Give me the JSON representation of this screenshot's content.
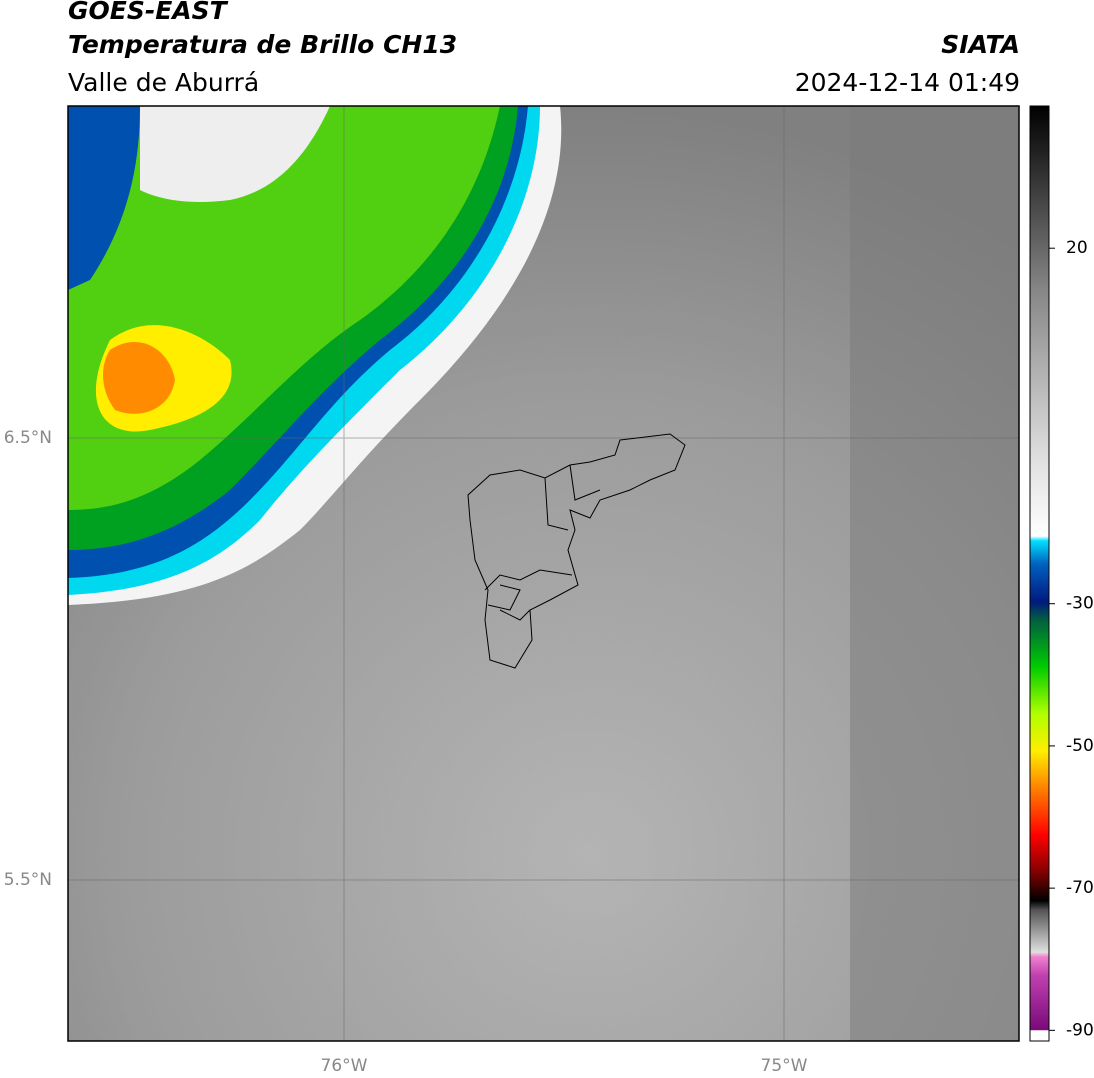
{
  "header": {
    "title": "GOES-EAST",
    "subtitle": "Temperatura de Brillo CH13",
    "region": "Valle de Aburrá",
    "source": "SIATA",
    "datetime": "2024-12-14 01:49"
  },
  "map": {
    "lat_labels": [
      "6.5°N",
      "5.5°N"
    ],
    "lon_labels": [
      "76°W",
      "75°W"
    ]
  },
  "colorbar": {
    "lim": [
      -91.5,
      40
    ],
    "ticks": [
      20,
      -30,
      -50,
      -70,
      -90
    ]
  }
}
